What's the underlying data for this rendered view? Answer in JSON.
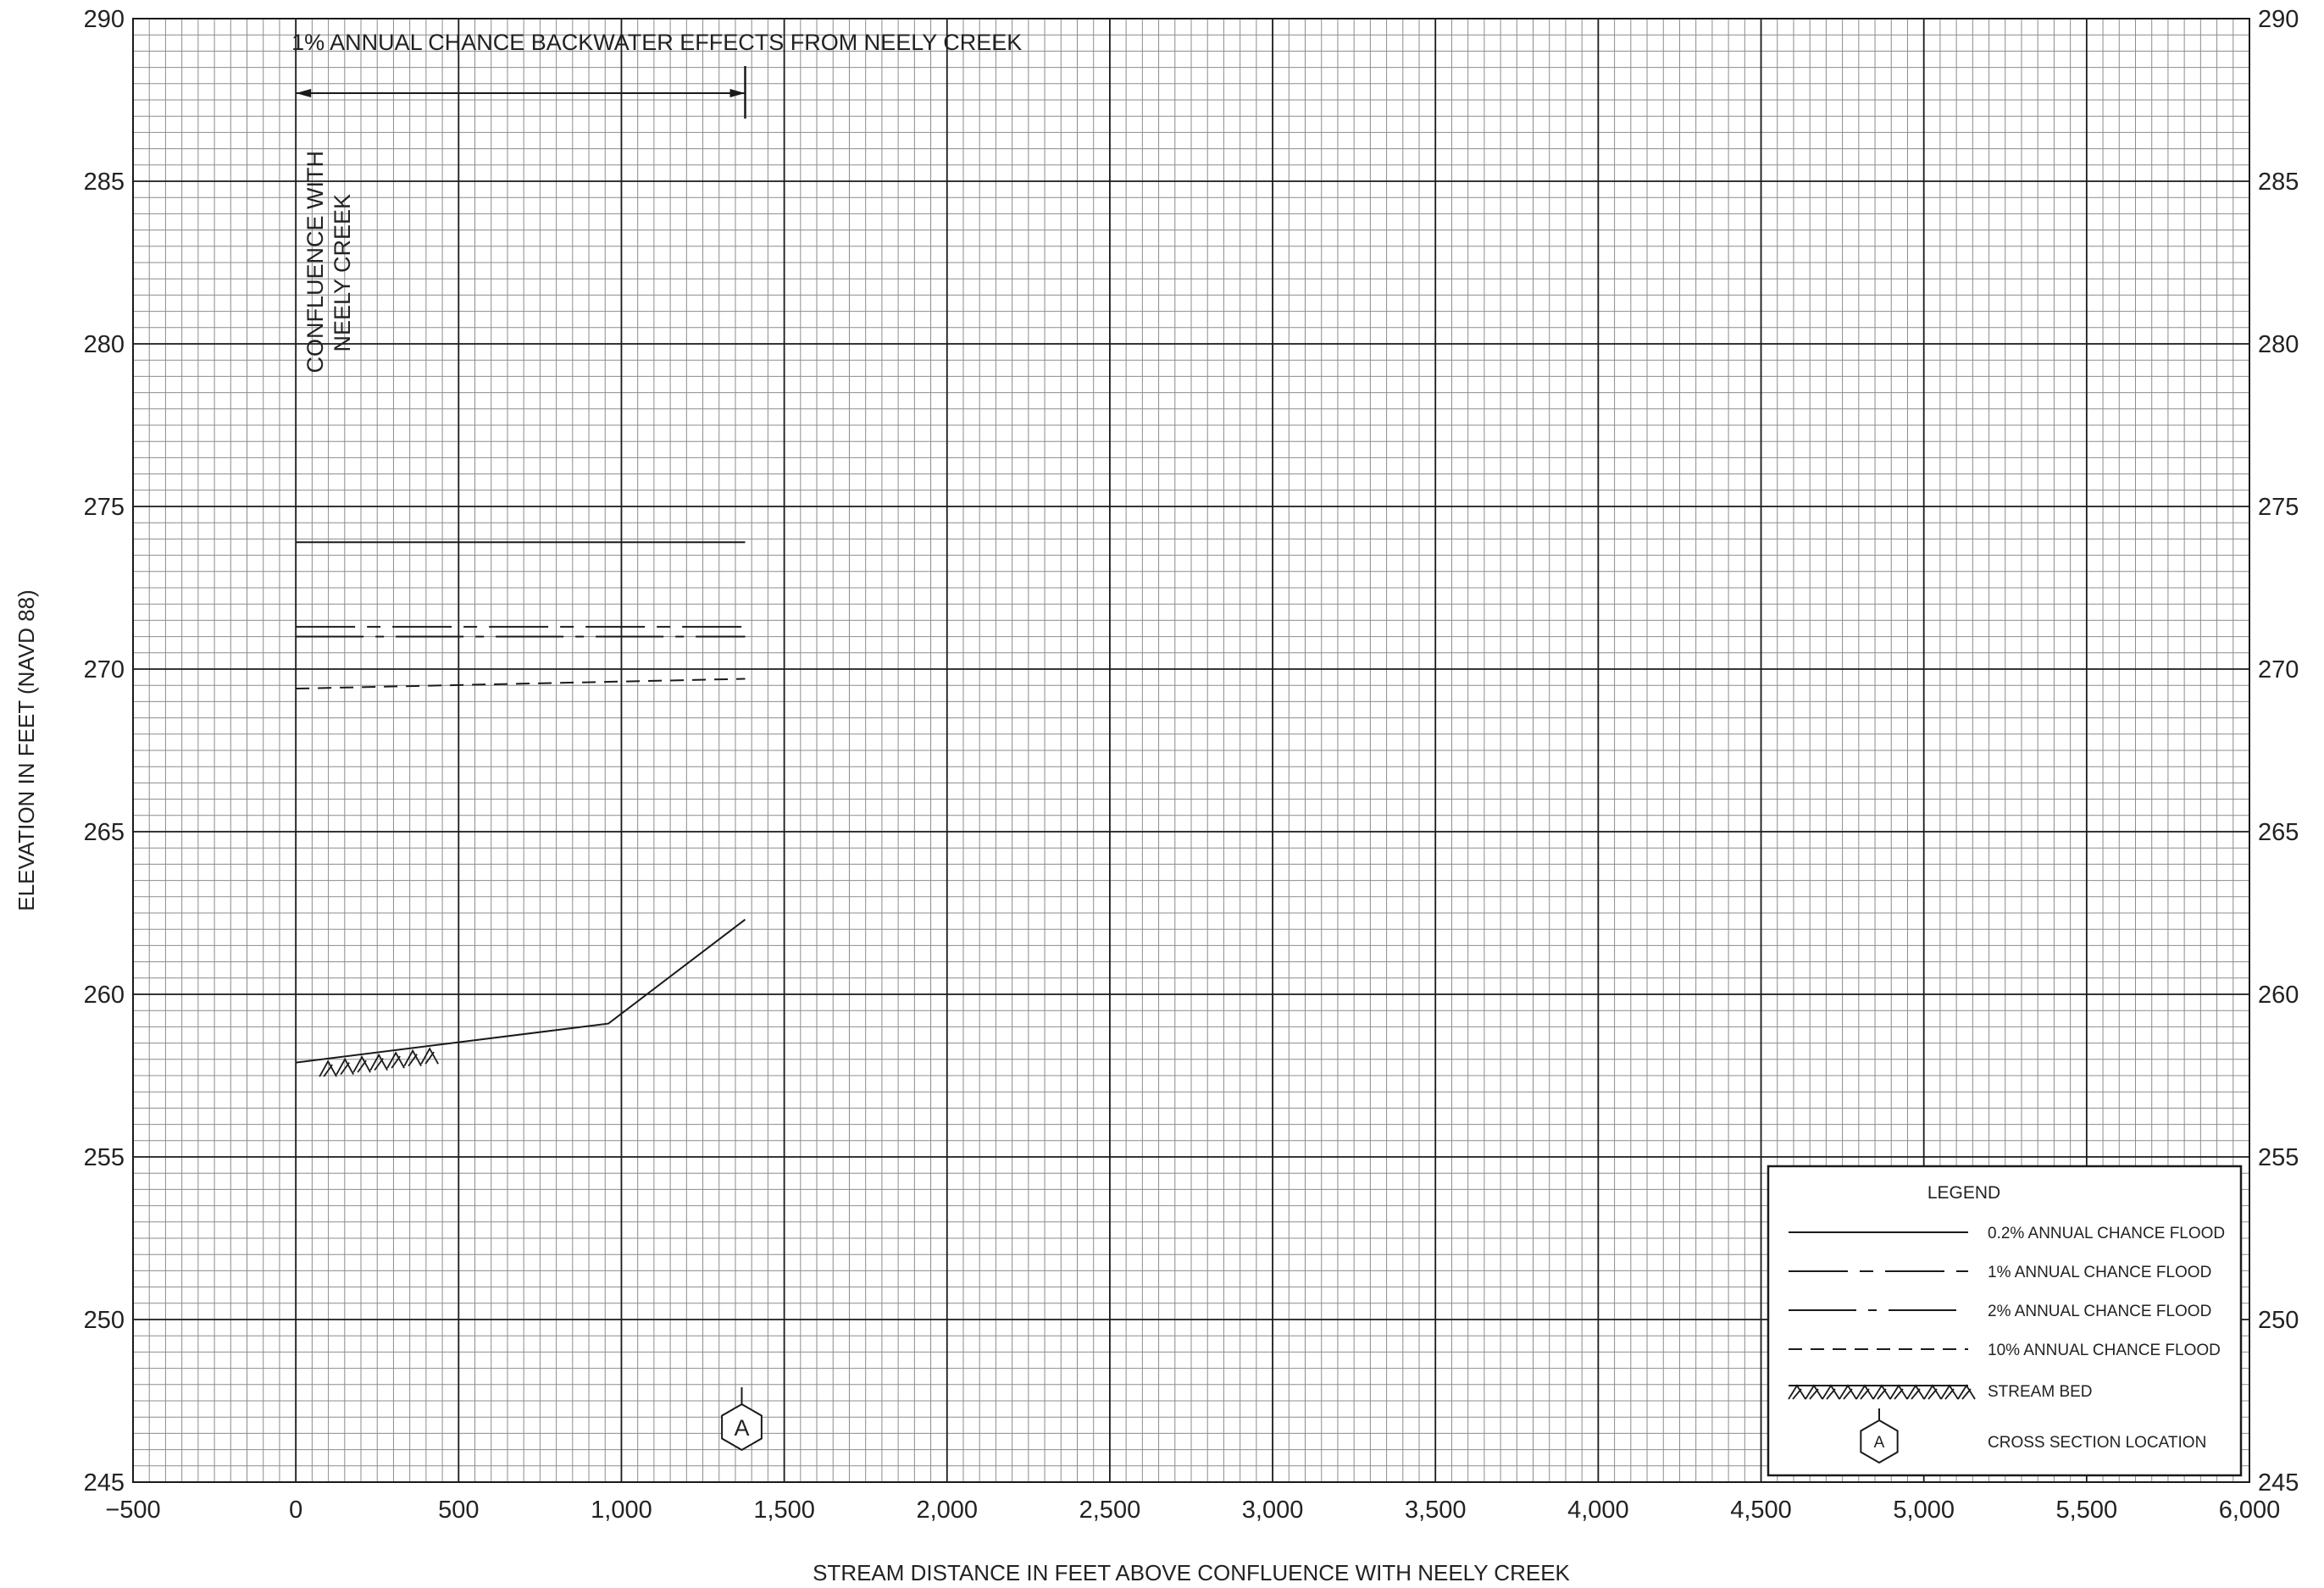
{
  "chart_data": {
    "type": "line",
    "xlabel": "STREAM DISTANCE IN FEET ABOVE CONFLUENCE WITH NEELY CREEK",
    "ylabel": "ELEVATION IN FEET (NAVD 88)",
    "xlim": [
      -500,
      6000
    ],
    "ylim": [
      245,
      290
    ],
    "x_ticks": [
      -500,
      0,
      500,
      1000,
      1500,
      2000,
      2500,
      3000,
      3500,
      4000,
      4500,
      5000,
      5500,
      6000
    ],
    "x_tick_labels": [
      "−500",
      "0",
      "500",
      "1,000",
      "1,500",
      "2,000",
      "2,500",
      "3,000",
      "3,500",
      "4,000",
      "4,500",
      "5,000",
      "5,500",
      "6,000"
    ],
    "y_ticks": [
      245,
      250,
      255,
      260,
      265,
      270,
      275,
      280,
      285,
      290
    ],
    "y_tick_labels": [
      "245",
      "250",
      "255",
      "260",
      "265",
      "270",
      "275",
      "280",
      "285",
      "290"
    ],
    "grid": true,
    "minor_grid": {
      "x_step": 50,
      "y_step": 0.5
    },
    "series": [
      {
        "name": "0.2% ANNUAL CHANCE FLOOD",
        "style": "solid",
        "x": [
          0,
          1380
        ],
        "y": [
          273.9,
          273.9
        ]
      },
      {
        "name": "1% ANNUAL CHANCE FLOOD",
        "style": "long-dash-short-dash",
        "x": [
          0,
          1380
        ],
        "y": [
          271.3,
          271.3
        ]
      },
      {
        "name": "2% ANNUAL CHANCE FLOOD",
        "style": "dash-dot",
        "x": [
          0,
          1380
        ],
        "y": [
          271.0,
          271.0
        ]
      },
      {
        "name": "10% ANNUAL CHANCE FLOOD",
        "style": "dashed",
        "x": [
          0,
          1380
        ],
        "y": [
          269.4,
          269.7
        ]
      },
      {
        "name": "STREAM BED",
        "style": "streambed",
        "x": [
          0,
          960,
          1380
        ],
        "y": [
          257.9,
          259.1,
          262.3
        ]
      }
    ],
    "annotations": {
      "backwater_text": "1% ANNUAL CHANCE BACKWATER EFFECTS FROM NEELY CREEK",
      "backwater_extent": [
        0,
        1380
      ],
      "confluence_line1": "CONFLUENCE WITH",
      "confluence_line2": "NEELY CREEK",
      "confluence_x": 0
    },
    "cross_sections": [
      {
        "label": "A",
        "x": 1380
      }
    ],
    "legend": {
      "title": "LEGEND",
      "position": "bottom-right",
      "items": [
        {
          "label": "0.2% ANNUAL CHANCE FLOOD",
          "style": "solid"
        },
        {
          "label": "1% ANNUAL CHANCE FLOOD",
          "style": "long-dash-short-dash"
        },
        {
          "label": "2% ANNUAL CHANCE FLOOD",
          "style": "dash-dot"
        },
        {
          "label": "10% ANNUAL CHANCE FLOOD",
          "style": "dashed"
        },
        {
          "label": "STREAM BED",
          "style": "streambed"
        },
        {
          "label": "CROSS SECTION LOCATION",
          "style": "hexagon",
          "marker_label": "A"
        }
      ]
    },
    "colors": {
      "major_grid": "#1a1a1a",
      "minor_grid": "#8c8c8c",
      "line": "#1a1a1a"
    }
  }
}
